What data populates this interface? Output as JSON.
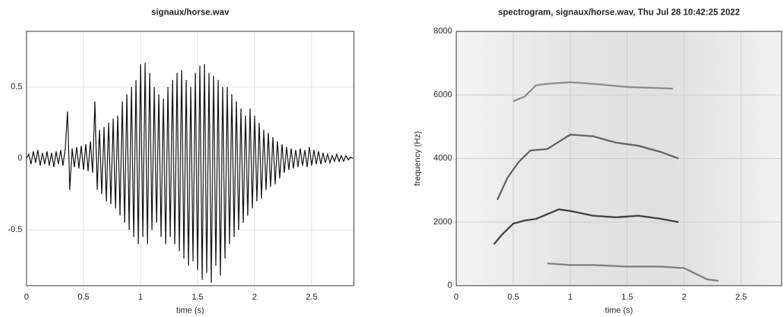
{
  "chart_data": [
    {
      "type": "line",
      "title": "signaux/horse.wav",
      "xlabel": "time  (s)",
      "xlim": [
        0,
        2.87
      ],
      "xticks": [
        0,
        0.5,
        1,
        1.5,
        2,
        2.5
      ],
      "ylim": [
        -0.89,
        0.89
      ],
      "yticks": [
        -0.5,
        0,
        0.5
      ],
      "grid": true,
      "color": "#000000",
      "x": [
        0,
        0.02,
        0.04,
        0.06,
        0.08,
        0.1,
        0.12,
        0.14,
        0.16,
        0.18,
        0.2,
        0.22,
        0.24,
        0.26,
        0.28,
        0.3,
        0.32,
        0.34,
        0.36,
        0.38,
        0.4,
        0.42,
        0.44,
        0.46,
        0.48,
        0.5,
        0.52,
        0.54,
        0.56,
        0.58,
        0.6,
        0.62,
        0.64,
        0.66,
        0.68,
        0.7,
        0.72,
        0.74,
        0.76,
        0.78,
        0.8,
        0.82,
        0.84,
        0.86,
        0.88,
        0.9,
        0.92,
        0.94,
        0.96,
        0.98,
        1,
        1.02,
        1.04,
        1.06,
        1.08,
        1.1,
        1.12,
        1.14,
        1.16,
        1.18,
        1.2,
        1.22,
        1.24,
        1.26,
        1.28,
        1.3,
        1.32,
        1.34,
        1.36,
        1.38,
        1.4,
        1.42,
        1.44,
        1.46,
        1.48,
        1.5,
        1.52,
        1.54,
        1.56,
        1.58,
        1.6,
        1.62,
        1.64,
        1.66,
        1.68,
        1.7,
        1.72,
        1.74,
        1.76,
        1.78,
        1.8,
        1.82,
        1.84,
        1.86,
        1.88,
        1.9,
        1.92,
        1.94,
        1.96,
        1.98,
        2,
        2.02,
        2.04,
        2.06,
        2.08,
        2.1,
        2.12,
        2.14,
        2.16,
        2.18,
        2.2,
        2.22,
        2.24,
        2.26,
        2.28,
        2.3,
        2.32,
        2.34,
        2.36,
        2.38,
        2.4,
        2.42,
        2.44,
        2.46,
        2.48,
        2.5,
        2.52,
        2.54,
        2.56,
        2.58,
        2.6,
        2.62,
        2.64,
        2.66,
        2.68,
        2.7,
        2.72,
        2.74,
        2.76,
        2.78,
        2.8,
        2.82,
        2.84,
        2.86
      ],
      "values": [
        0,
        0.03,
        -0.04,
        0.05,
        -0.03,
        0.06,
        -0.05,
        0.04,
        -0.04,
        0.05,
        -0.05,
        0.04,
        -0.06,
        0.05,
        -0.04,
        0.06,
        -0.05,
        0.07,
        0.33,
        -0.22,
        0.07,
        -0.06,
        0.08,
        -0.07,
        0.09,
        -0.08,
        0.1,
        -0.09,
        0.12,
        -0.1,
        0.4,
        -0.22,
        0.2,
        -0.25,
        0.22,
        -0.3,
        0.25,
        -0.32,
        0.28,
        -0.35,
        0.3,
        -0.4,
        0.4,
        -0.45,
        0.45,
        -0.5,
        0.5,
        -0.55,
        0.55,
        -0.6,
        0.66,
        -0.55,
        0.67,
        -0.6,
        0.6,
        -0.5,
        0.5,
        -0.45,
        0.45,
        -0.55,
        0.42,
        -0.6,
        0.5,
        -0.55,
        0.55,
        -0.6,
        0.6,
        -0.65,
        0.62,
        -0.7,
        0.55,
        -0.75,
        0.5,
        -0.72,
        0.6,
        -0.78,
        0.65,
        -0.85,
        0.66,
        -0.8,
        0.6,
        -0.87,
        0.58,
        -0.75,
        0.55,
        -0.82,
        0.5,
        -0.7,
        0.5,
        -0.6,
        0.45,
        -0.55,
        0.4,
        -0.5,
        0.35,
        -0.45,
        0.3,
        -0.4,
        0.35,
        -0.35,
        0.3,
        -0.3,
        0.25,
        -0.28,
        0.2,
        -0.22,
        0.18,
        -0.2,
        0.15,
        -0.18,
        0.12,
        -0.14,
        0.1,
        -0.1,
        0.08,
        -0.08,
        0.07,
        -0.07,
        0.06,
        -0.06,
        0.07,
        -0.05,
        0.06,
        -0.06,
        0.08,
        -0.05,
        0.06,
        -0.04,
        0.05,
        -0.04,
        0.04,
        -0.03,
        0.03,
        -0.03,
        0.02,
        -0.02,
        0.03,
        -0.02,
        0.02,
        -0.02,
        0.02,
        -0.01,
        0.01,
        0
      ]
    },
    {
      "type": "spectrogram",
      "title": "spectrogram, signaux/horse.wav, Thu Jul 28 10:42:25 2022",
      "xlabel": "time  (s)",
      "ylabel": "frequency  (Hz)",
      "xlim": [
        0,
        2.855
      ],
      "xticks": [
        0,
        0.5,
        1,
        1.5,
        2,
        2.5
      ],
      "ylim": [
        0,
        8000
      ],
      "yticks": [
        0,
        2000,
        4000,
        6000,
        8000
      ],
      "grid": true,
      "series": [
        {
          "color": "#1a1a1a",
          "x": [
            0.33,
            0.4,
            0.5,
            0.6,
            0.7,
            0.8,
            0.9,
            1.0,
            1.2,
            1.4,
            1.6,
            1.8,
            1.95
          ],
          "values": [
            1300,
            1600,
            1950,
            2050,
            2100,
            2250,
            2400,
            2350,
            2200,
            2150,
            2200,
            2100,
            2000
          ]
        },
        {
          "color": "#444444",
          "x": [
            0.36,
            0.45,
            0.55,
            0.65,
            0.8,
            1.0,
            1.2,
            1.4,
            1.6,
            1.8,
            1.95
          ],
          "values": [
            2700,
            3400,
            3900,
            4250,
            4300,
            4750,
            4700,
            4500,
            4400,
            4200,
            4000
          ]
        },
        {
          "color": "#777777",
          "x": [
            0.5,
            0.6,
            0.7,
            0.8,
            1.0,
            1.2,
            1.5,
            1.9
          ],
          "values": [
            5800,
            5950,
            6300,
            6350,
            6400,
            6350,
            6250,
            6200
          ]
        },
        {
          "color": "#666666",
          "x": [
            0.8,
            1.0,
            1.2,
            1.5,
            1.8,
            2.0,
            2.2,
            2.3
          ],
          "values": [
            700,
            650,
            650,
            600,
            600,
            550,
            200,
            150
          ]
        }
      ]
    }
  ]
}
